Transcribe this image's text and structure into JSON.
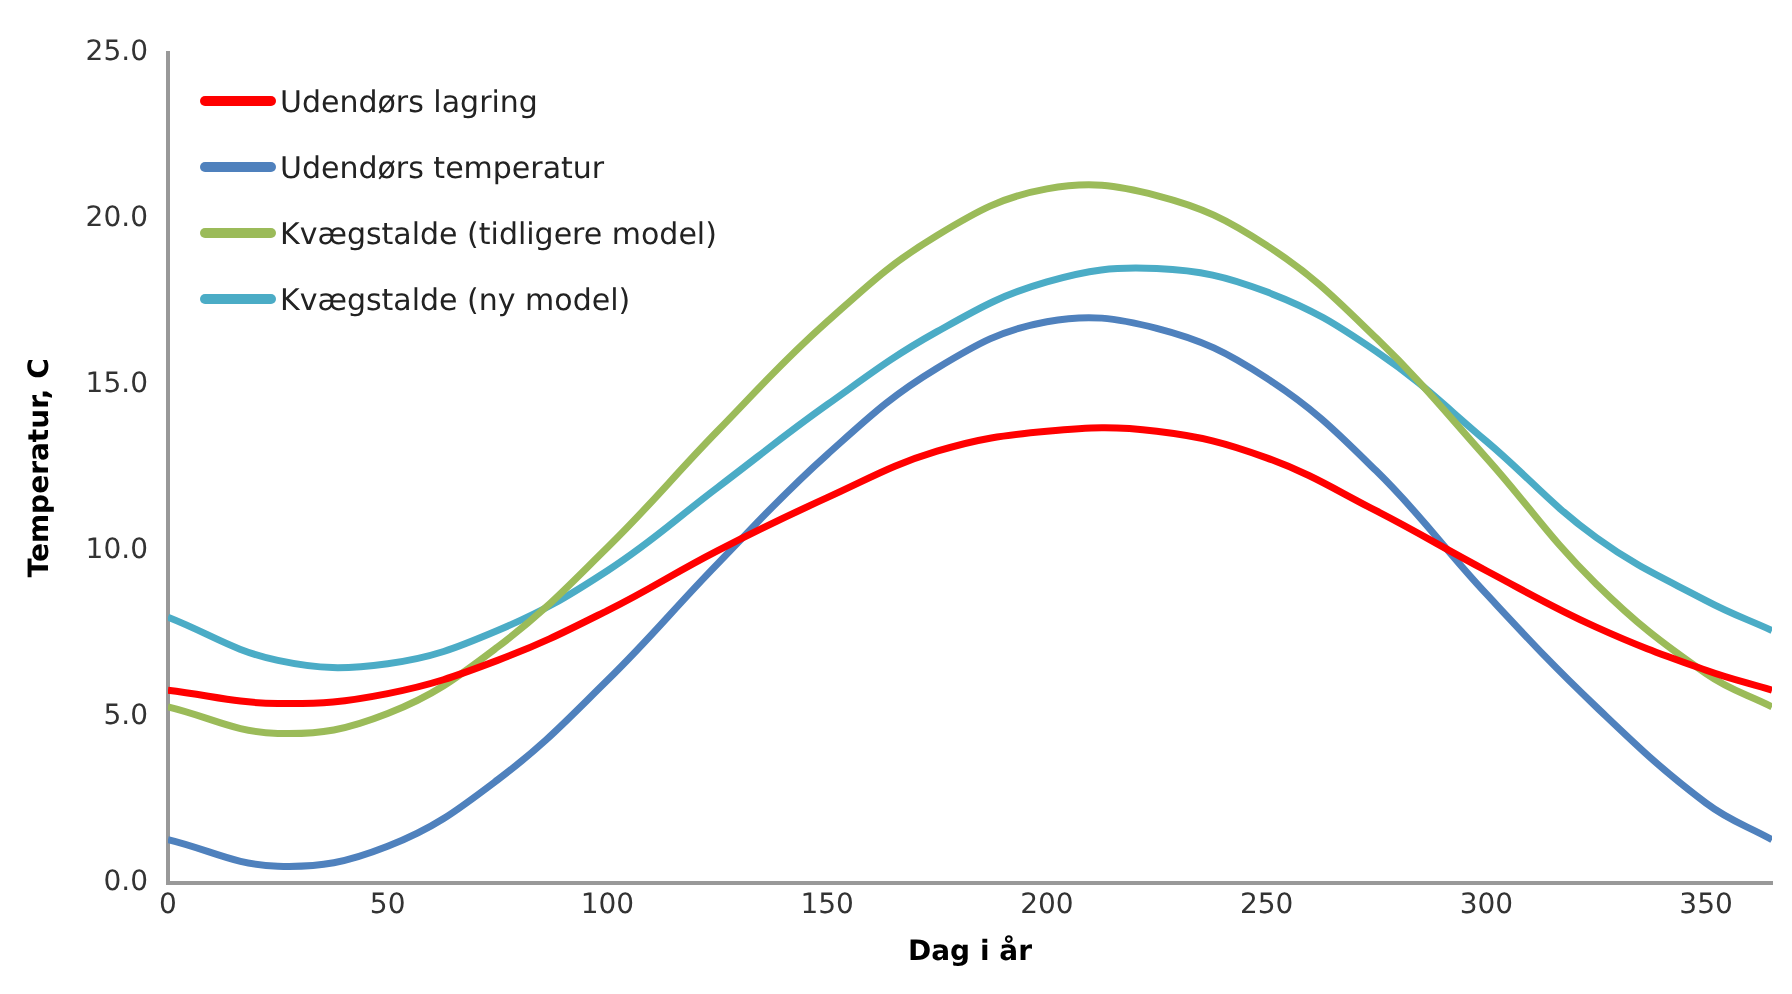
{
  "chart_data": {
    "type": "line",
    "xlabel": "Dag i år",
    "ylabel": "Temperatur, C",
    "x": [
      0,
      25,
      50,
      75,
      100,
      125,
      150,
      175,
      200,
      225,
      250,
      275,
      300,
      325,
      350,
      365
    ],
    "xlim": [
      0,
      365
    ],
    "xticks": [
      0,
      50,
      100,
      150,
      200,
      250,
      300,
      350
    ],
    "ylim": [
      0,
      25
    ],
    "yticks": [
      {
        "value": 0,
        "label": "0.0"
      },
      {
        "value": 5,
        "label": "5.0"
      },
      {
        "value": 10,
        "label": "10.0"
      },
      {
        "value": 15,
        "label": "15.0"
      },
      {
        "value": 20,
        "label": "20.0"
      },
      {
        "value": 25,
        "label": "25.0"
      }
    ],
    "grid": false,
    "legend": "top left",
    "marker": "none",
    "line_style": "solid",
    "series": [
      {
        "name": "Udendørs lagring",
        "color": "#ff0000",
        "values": [
          5.8,
          5.4,
          5.7,
          6.7,
          8.2,
          10.0,
          11.6,
          13.0,
          13.6,
          13.6,
          12.8,
          11.2,
          9.4,
          7.7,
          6.4,
          5.8
        ]
      },
      {
        "name": "Udendørs temperatur",
        "color": "#4f81bd",
        "values": [
          1.3,
          0.5,
          1.1,
          3.1,
          6.1,
          9.6,
          12.9,
          15.5,
          16.9,
          16.7,
          15.2,
          12.4,
          8.7,
          5.3,
          2.4,
          1.3
        ]
      },
      {
        "name": "Kvægstalde (tidligere model)",
        "color": "#9bbb59",
        "values": [
          5.3,
          4.5,
          5.1,
          7.1,
          10.1,
          13.6,
          16.9,
          19.5,
          20.9,
          20.7,
          19.2,
          16.4,
          12.8,
          9.0,
          6.3,
          5.3
        ]
      },
      {
        "name": "Kvægstalde (ny model)",
        "color": "#4bacc6",
        "values": [
          8.0,
          6.7,
          6.6,
          7.6,
          9.4,
          11.9,
          14.4,
          16.6,
          18.1,
          18.5,
          17.8,
          16.0,
          13.3,
          10.4,
          8.5,
          7.6
        ]
      }
    ]
  }
}
